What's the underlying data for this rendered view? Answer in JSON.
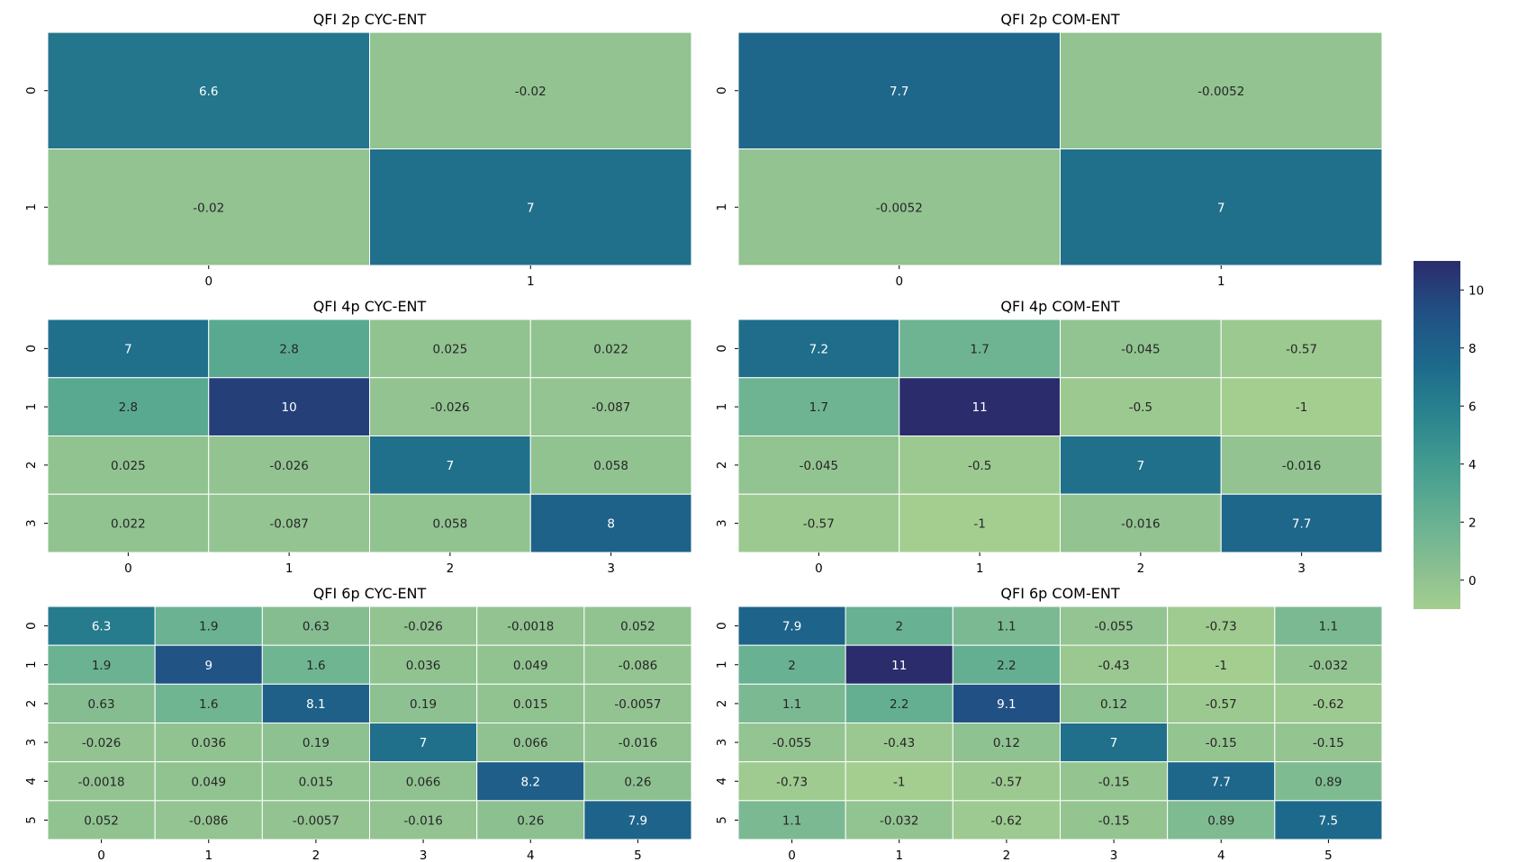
{
  "chart_data": [
    {
      "type": "heatmap",
      "title": "QFI 2p CYC-ENT",
      "x_ticks": [
        "0",
        "1"
      ],
      "y_ticks": [
        "0",
        "1"
      ],
      "values": [
        [
          6.6,
          -0.02
        ],
        [
          -0.02,
          7
        ]
      ],
      "labels": [
        [
          "6.6",
          "-0.02"
        ],
        [
          "-0.02",
          "7"
        ]
      ]
    },
    {
      "type": "heatmap",
      "title": "QFI 2p COM-ENT",
      "x_ticks": [
        "0",
        "1"
      ],
      "y_ticks": [
        "0",
        "1"
      ],
      "values": [
        [
          7.7,
          -0.0052
        ],
        [
          -0.0052,
          7
        ]
      ],
      "labels": [
        [
          "7.7",
          "-0.0052"
        ],
        [
          "-0.0052",
          "7"
        ]
      ]
    },
    {
      "type": "heatmap",
      "title": "QFI 4p CYC-ENT",
      "x_ticks": [
        "0",
        "1",
        "2",
        "3"
      ],
      "y_ticks": [
        "0",
        "1",
        "2",
        "3"
      ],
      "values": [
        [
          7,
          2.8,
          0.025,
          0.022
        ],
        [
          2.8,
          10,
          -0.026,
          -0.087
        ],
        [
          0.025,
          -0.026,
          7,
          0.058
        ],
        [
          0.022,
          -0.087,
          0.058,
          8
        ]
      ],
      "labels": [
        [
          "7",
          "2.8",
          "0.025",
          "0.022"
        ],
        [
          "2.8",
          "10",
          "-0.026",
          "-0.087"
        ],
        [
          "0.025",
          "-0.026",
          "7",
          "0.058"
        ],
        [
          "0.022",
          "-0.087",
          "0.058",
          "8"
        ]
      ]
    },
    {
      "type": "heatmap",
      "title": "QFI 4p COM-ENT",
      "x_ticks": [
        "0",
        "1",
        "2",
        "3"
      ],
      "y_ticks": [
        "0",
        "1",
        "2",
        "3"
      ],
      "values": [
        [
          7.2,
          1.7,
          -0.045,
          -0.57
        ],
        [
          1.7,
          11,
          -0.5,
          -1
        ],
        [
          -0.045,
          -0.5,
          7,
          -0.016
        ],
        [
          -0.57,
          -1,
          -0.016,
          7.7
        ]
      ],
      "labels": [
        [
          "7.2",
          "1.7",
          "-0.045",
          "-0.57"
        ],
        [
          "1.7",
          "11",
          "-0.5",
          "-1"
        ],
        [
          "-0.045",
          "-0.5",
          "7",
          "-0.016"
        ],
        [
          "-0.57",
          "-1",
          "-0.016",
          "7.7"
        ]
      ]
    },
    {
      "type": "heatmap",
      "title": "QFI 6p CYC-ENT",
      "x_ticks": [
        "0",
        "1",
        "2",
        "3",
        "4",
        "5"
      ],
      "y_ticks": [
        "0",
        "1",
        "2",
        "3",
        "4",
        "5"
      ],
      "values": [
        [
          6.3,
          1.9,
          0.63,
          -0.026,
          -0.0018,
          0.052
        ],
        [
          1.9,
          9,
          1.6,
          0.036,
          0.049,
          -0.086
        ],
        [
          0.63,
          1.6,
          8.1,
          0.19,
          0.015,
          -0.0057
        ],
        [
          -0.026,
          0.036,
          0.19,
          7,
          0.066,
          -0.016
        ],
        [
          -0.0018,
          0.049,
          0.015,
          0.066,
          8.2,
          0.26
        ],
        [
          0.052,
          -0.086,
          -0.0057,
          -0.016,
          0.26,
          7.9
        ]
      ],
      "labels": [
        [
          "6.3",
          "1.9",
          "0.63",
          "-0.026",
          "-0.0018",
          "0.052"
        ],
        [
          "1.9",
          "9",
          "1.6",
          "0.036",
          "0.049",
          "-0.086"
        ],
        [
          "0.63",
          "1.6",
          "8.1",
          "0.19",
          "0.015",
          "-0.0057"
        ],
        [
          "-0.026",
          "0.036",
          "0.19",
          "7",
          "0.066",
          "-0.016"
        ],
        [
          "-0.0018",
          "0.049",
          "0.015",
          "0.066",
          "8.2",
          "0.26"
        ],
        [
          "0.052",
          "-0.086",
          "-0.0057",
          "-0.016",
          "0.26",
          "7.9"
        ]
      ]
    },
    {
      "type": "heatmap",
      "title": "QFI 6p COM-ENT",
      "x_ticks": [
        "0",
        "1",
        "2",
        "3",
        "4",
        "5"
      ],
      "y_ticks": [
        "0",
        "1",
        "2",
        "3",
        "4",
        "5"
      ],
      "values": [
        [
          7.9,
          2,
          1.1,
          -0.055,
          -0.73,
          1.1
        ],
        [
          2,
          11,
          2.2,
          -0.43,
          -1,
          -0.032
        ],
        [
          1.1,
          2.2,
          9.1,
          0.12,
          -0.57,
          -0.62
        ],
        [
          -0.055,
          -0.43,
          0.12,
          7,
          -0.15,
          -0.15
        ],
        [
          -0.73,
          -1,
          -0.57,
          -0.15,
          7.7,
          0.89
        ],
        [
          1.1,
          -0.032,
          -0.62,
          -0.15,
          0.89,
          7.5
        ]
      ],
      "labels": [
        [
          "7.9",
          "2",
          "1.1",
          "-0.055",
          "-0.73",
          "1.1"
        ],
        [
          "2",
          "11",
          "2.2",
          "-0.43",
          "-1",
          "-0.032"
        ],
        [
          "1.1",
          "2.2",
          "9.1",
          "0.12",
          "-0.57",
          "-0.62"
        ],
        [
          "-0.055",
          "-0.43",
          "0.12",
          "7",
          "-0.15",
          "-0.15"
        ],
        [
          "-0.73",
          "-1",
          "-0.57",
          "-0.15",
          "7.7",
          "0.89"
        ],
        [
          "1.1",
          "-0.032",
          "-0.62",
          "-0.15",
          "0.89",
          "7.5"
        ]
      ]
    }
  ],
  "colorbar": {
    "vmin": -1,
    "vmax": 11,
    "ticks": [
      "0",
      "2",
      "4",
      "6",
      "8",
      "10"
    ],
    "colormap": "crest"
  }
}
